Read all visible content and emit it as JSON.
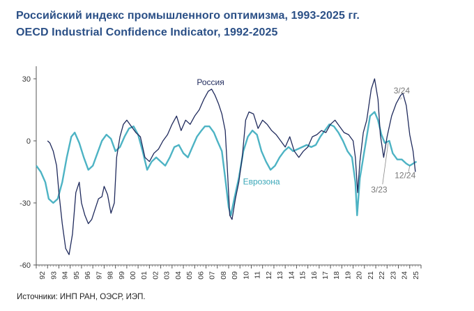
{
  "title_ru": "Российский индекс промышленного оптимизма, 1993-2025 гг.",
  "title_en": "OECD Industrial Confidence Indicator, 1992-2025",
  "source": "Источники: ИНП РАН, ОЭСР, ИЭП.",
  "chart_data": {
    "type": "line",
    "ylim": [
      -60,
      35
    ],
    "yticks": [
      30,
      0,
      -30,
      -60
    ],
    "xlim": [
      1992,
      2026
    ],
    "xticks": [
      "92",
      "93",
      "94",
      "95",
      "96",
      "97",
      "98",
      "99",
      "00",
      "01",
      "02",
      "03",
      "04",
      "05",
      "06",
      "07",
      "08",
      "09",
      "10",
      "11",
      "12",
      "13",
      "14",
      "15",
      "16",
      "17",
      "18",
      "19",
      "20",
      "21",
      "22",
      "23",
      "24",
      "25"
    ],
    "grid": false,
    "series": [
      {
        "name": "Россия",
        "color": "#1f2a5c",
        "points": [
          [
            1993.0,
            0
          ],
          [
            1993.2,
            -1
          ],
          [
            1993.5,
            -5
          ],
          [
            1993.8,
            -12
          ],
          [
            1994.0,
            -25
          ],
          [
            1994.3,
            -40
          ],
          [
            1994.6,
            -52
          ],
          [
            1994.9,
            -55
          ],
          [
            1995.2,
            -45
          ],
          [
            1995.5,
            -25
          ],
          [
            1995.8,
            -20
          ],
          [
            1996.0,
            -30
          ],
          [
            1996.3,
            -36
          ],
          [
            1996.6,
            -40
          ],
          [
            1996.9,
            -38
          ],
          [
            1997.2,
            -33
          ],
          [
            1997.5,
            -28
          ],
          [
            1997.8,
            -27
          ],
          [
            1998.0,
            -22
          ],
          [
            1998.3,
            -26
          ],
          [
            1998.6,
            -35
          ],
          [
            1998.9,
            -30
          ],
          [
            1999.1,
            -8
          ],
          [
            1999.4,
            2
          ],
          [
            1999.7,
            8
          ],
          [
            2000.0,
            10
          ],
          [
            2000.4,
            7
          ],
          [
            2000.8,
            4
          ],
          [
            2001.2,
            2
          ],
          [
            2001.6,
            -8
          ],
          [
            2002.0,
            -10
          ],
          [
            2002.4,
            -6
          ],
          [
            2002.8,
            -4
          ],
          [
            2003.2,
            0
          ],
          [
            2003.6,
            3
          ],
          [
            2004.0,
            8
          ],
          [
            2004.4,
            12
          ],
          [
            2004.8,
            5
          ],
          [
            2005.2,
            10
          ],
          [
            2005.6,
            8
          ],
          [
            2006.0,
            12
          ],
          [
            2006.4,
            15
          ],
          [
            2006.8,
            20
          ],
          [
            2007.2,
            24
          ],
          [
            2007.5,
            25
          ],
          [
            2007.8,
            22
          ],
          [
            2008.1,
            18
          ],
          [
            2008.4,
            13
          ],
          [
            2008.7,
            5
          ],
          [
            2008.9,
            -15
          ],
          [
            2009.1,
            -36
          ],
          [
            2009.3,
            -38
          ],
          [
            2009.6,
            -28
          ],
          [
            2009.9,
            -20
          ],
          [
            2010.2,
            -8
          ],
          [
            2010.5,
            10
          ],
          [
            2010.8,
            14
          ],
          [
            2011.2,
            13
          ],
          [
            2011.6,
            6
          ],
          [
            2012.0,
            10
          ],
          [
            2012.4,
            8
          ],
          [
            2012.8,
            5
          ],
          [
            2013.2,
            3
          ],
          [
            2013.6,
            0
          ],
          [
            2014.0,
            -3
          ],
          [
            2014.4,
            2
          ],
          [
            2014.8,
            -5
          ],
          [
            2015.2,
            -8
          ],
          [
            2015.6,
            -5
          ],
          [
            2016.0,
            -3
          ],
          [
            2016.4,
            2
          ],
          [
            2016.8,
            3
          ],
          [
            2017.2,
            5
          ],
          [
            2017.6,
            4
          ],
          [
            2018.0,
            8
          ],
          [
            2018.4,
            10
          ],
          [
            2018.8,
            7
          ],
          [
            2019.2,
            4
          ],
          [
            2019.6,
            3
          ],
          [
            2020.0,
            0
          ],
          [
            2020.2,
            -8
          ],
          [
            2020.4,
            -25
          ],
          [
            2020.6,
            -10
          ],
          [
            2020.9,
            4
          ],
          [
            2021.2,
            10
          ],
          [
            2021.6,
            25
          ],
          [
            2021.9,
            30
          ],
          [
            2022.2,
            20
          ],
          [
            2022.4,
            3
          ],
          [
            2022.7,
            -8
          ],
          [
            2023.0,
            2
          ],
          [
            2023.4,
            12
          ],
          [
            2023.8,
            18
          ],
          [
            2024.2,
            22
          ],
          [
            2024.4,
            23
          ],
          [
            2024.7,
            17
          ],
          [
            2025.0,
            3
          ],
          [
            2025.3,
            -5
          ],
          [
            2025.5,
            -15
          ]
        ]
      },
      {
        "name": "Еврозона",
        "color": "#4db3c4",
        "points": [
          [
            1992.0,
            -12
          ],
          [
            1992.4,
            -15
          ],
          [
            1992.8,
            -20
          ],
          [
            1993.1,
            -28
          ],
          [
            1993.5,
            -30
          ],
          [
            1993.9,
            -28
          ],
          [
            1994.3,
            -20
          ],
          [
            1994.7,
            -8
          ],
          [
            1995.1,
            2
          ],
          [
            1995.4,
            4
          ],
          [
            1995.8,
            -1
          ],
          [
            1996.2,
            -8
          ],
          [
            1996.6,
            -14
          ],
          [
            1997.0,
            -12
          ],
          [
            1997.4,
            -6
          ],
          [
            1997.8,
            0
          ],
          [
            1998.2,
            3
          ],
          [
            1998.6,
            1
          ],
          [
            1999.0,
            -5
          ],
          [
            1999.4,
            -3
          ],
          [
            1999.8,
            2
          ],
          [
            2000.2,
            6
          ],
          [
            2000.6,
            7
          ],
          [
            2001.0,
            3
          ],
          [
            2001.4,
            -5
          ],
          [
            2001.8,
            -14
          ],
          [
            2002.2,
            -10
          ],
          [
            2002.6,
            -8
          ],
          [
            2003.0,
            -10
          ],
          [
            2003.4,
            -12
          ],
          [
            2003.8,
            -8
          ],
          [
            2004.2,
            -3
          ],
          [
            2004.6,
            -2
          ],
          [
            2005.0,
            -6
          ],
          [
            2005.4,
            -8
          ],
          [
            2005.8,
            -3
          ],
          [
            2006.2,
            2
          ],
          [
            2006.6,
            5
          ],
          [
            2006.9,
            7
          ],
          [
            2007.3,
            7
          ],
          [
            2007.7,
            4
          ],
          [
            2008.0,
            0
          ],
          [
            2008.4,
            -5
          ],
          [
            2008.7,
            -18
          ],
          [
            2009.0,
            -32
          ],
          [
            2009.2,
            -36
          ],
          [
            2009.5,
            -28
          ],
          [
            2009.9,
            -18
          ],
          [
            2010.3,
            -5
          ],
          [
            2010.7,
            2
          ],
          [
            2011.1,
            5
          ],
          [
            2011.5,
            3
          ],
          [
            2011.9,
            -5
          ],
          [
            2012.3,
            -10
          ],
          [
            2012.7,
            -14
          ],
          [
            2013.1,
            -12
          ],
          [
            2013.5,
            -8
          ],
          [
            2013.9,
            -5
          ],
          [
            2014.3,
            -3
          ],
          [
            2014.7,
            -5
          ],
          [
            2015.1,
            -4
          ],
          [
            2015.5,
            -3
          ],
          [
            2015.9,
            -2
          ],
          [
            2016.3,
            -3
          ],
          [
            2016.7,
            -2
          ],
          [
            2017.1,
            2
          ],
          [
            2017.5,
            5
          ],
          [
            2017.9,
            8
          ],
          [
            2018.3,
            7
          ],
          [
            2018.7,
            4
          ],
          [
            2019.1,
            0
          ],
          [
            2019.5,
            -5
          ],
          [
            2019.9,
            -8
          ],
          [
            2020.2,
            -20
          ],
          [
            2020.35,
            -36
          ],
          [
            2020.6,
            -18
          ],
          [
            2020.9,
            -8
          ],
          [
            2021.2,
            2
          ],
          [
            2021.5,
            12
          ],
          [
            2021.9,
            14
          ],
          [
            2022.2,
            10
          ],
          [
            2022.5,
            3
          ],
          [
            2022.8,
            -1
          ],
          [
            2023.2,
            0
          ],
          [
            2023.5,
            -6
          ],
          [
            2023.9,
            -9
          ],
          [
            2024.3,
            -9
          ],
          [
            2024.7,
            -11
          ],
          [
            2025.0,
            -12
          ],
          [
            2025.3,
            -11
          ],
          [
            2025.6,
            -10
          ]
        ]
      }
    ],
    "annotations": [
      {
        "text": "Россия",
        "x": 2007.4,
        "y": 27,
        "color": "#1f2a5c"
      },
      {
        "text": "Еврозона",
        "x": 2011.9,
        "y": -21,
        "color": "#3aa7b8"
      },
      {
        "text": "3/24",
        "x": 2024.3,
        "y": 23,
        "color": "#777777"
      },
      {
        "text": "3/23",
        "x": 2022.3,
        "y": -25,
        "color": "#777777"
      },
      {
        "text": "12/24",
        "x": 2024.6,
        "y": -18,
        "color": "#777777"
      }
    ]
  }
}
